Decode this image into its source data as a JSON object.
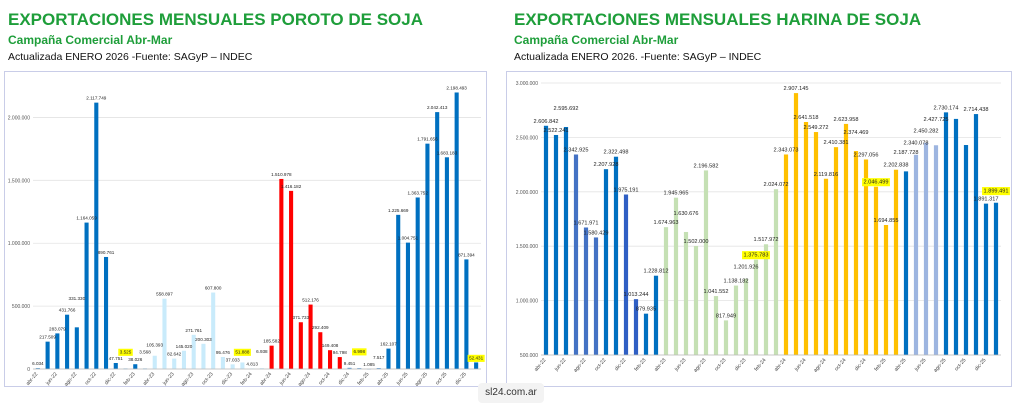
{
  "left": {
    "title": "EXPORTACIONES MENSUALES POROTO DE SOJA",
    "subtitle": "Campaña Comercial Abr-Mar",
    "updated": "Actualizada  ENERO  2026  -Fuente: SAGyP – INDEC"
  },
  "right": {
    "title": "EXPORTACIONES MENSUALES HARINA DE SOJA",
    "subtitle": "Campaña Comercial Abr-Mar",
    "updated": "Actualizada  ENERO 2026. -Fuente: SAGyP – INDEC"
  },
  "footer": "sl24.com.ar",
  "chart_data": [
    {
      "type": "bar",
      "ylim": [
        0,
        2250000
      ],
      "yticks": [
        0,
        500000,
        1000000,
        1500000,
        2000000
      ],
      "ytick_labels": [
        "0",
        "500.000",
        "1.000.000",
        "1.500.000",
        "2.000.000"
      ],
      "grid": true,
      "categories": [
        "abr-22",
        "may-22",
        "jun-22",
        "jul-22",
        "ago-22",
        "sep-22",
        "oct-22",
        "nov-22",
        "dic-22",
        "ene-23",
        "feb-23",
        "mar-23",
        "abr-23",
        "may-23",
        "jun-23",
        "jul-23",
        "ago-23",
        "sep-23",
        "oct-23",
        "nov-23",
        "dic-23",
        "ene-24",
        "feb-24",
        "mar-24",
        "abr-24",
        "may-24",
        "jun-24",
        "jul-24",
        "ago-24",
        "sep-24",
        "oct-24",
        "nov-24",
        "dic-24",
        "ene-25",
        "feb-25",
        "mar-25",
        "abr-25",
        "may-25",
        "jun-25",
        "jul-25",
        "ago-25",
        "sep-25",
        "oct-25",
        "nov-25",
        "dic-25",
        "ene-26"
      ],
      "values": [
        6034,
        217509,
        283079,
        431766,
        331330,
        1164059,
        2117749,
        890761,
        47751,
        3525,
        38026,
        3568,
        105393,
        558897,
        82642,
        145020,
        271761,
        200303,
        607800,
        95476,
        37033,
        51888,
        4813,
        6938,
        185582,
        1510978,
        1416182,
        371733,
        512176,
        292409,
        149408,
        94798,
        9451,
        6998,
        1085,
        7517,
        162107,
        1225669,
        1004751,
        1363752,
        1791656,
        2042413,
        1683183,
        2198493,
        871394,
        52431
      ],
      "color_groups": [
        {
          "from": 0,
          "to": 11,
          "color": "#0070c0"
        },
        {
          "from": 12,
          "to": 23,
          "color": "#c9ebfb"
        },
        {
          "from": 24,
          "to": 31,
          "color": "#ff0000"
        },
        {
          "from": 32,
          "to": 35,
          "color": "#5b9bd5"
        },
        {
          "from": 36,
          "to": 45,
          "color": "#0070c0"
        }
      ],
      "highlighted": [
        "ene-23",
        "ene-24",
        "ene-25",
        "ene-26"
      ],
      "unlabeled": [],
      "highlight_color": "#ffff00"
    },
    {
      "type": "bar",
      "ylim": [
        500000,
        3000000
      ],
      "yticks": [
        500000,
        1000000,
        1500000,
        2000000,
        2500000,
        3000000
      ],
      "ytick_labels": [
        "500.000",
        "1.000.000",
        "1.500.000",
        "2.000.000",
        "2.500.000",
        "3.000.000"
      ],
      "grid": true,
      "categories": [
        "abr-22",
        "may-22",
        "jun-22",
        "jul-22",
        "ago-22",
        "sep-22",
        "oct-22",
        "nov-22",
        "dic-22",
        "ene-23",
        "feb-23",
        "mar-23",
        "abr-23",
        "may-23",
        "jun-23",
        "jul-23",
        "ago-23",
        "sep-23",
        "oct-23",
        "nov-23",
        "dic-23",
        "ene-24",
        "feb-24",
        "mar-24",
        "abr-24",
        "may-24",
        "jun-24",
        "jul-24",
        "ago-24",
        "sep-24",
        "oct-24",
        "nov-24",
        "dic-24",
        "ene-25",
        "feb-25",
        "mar-25",
        "abr-25",
        "may-25",
        "jun-25",
        "jul-25",
        "ago-25",
        "sep-25",
        "oct-25",
        "nov-25",
        "dic-25",
        "ene-26"
      ],
      "values": [
        2606842,
        2522241,
        2595692,
        2342925,
        1671971,
        1580429,
        2207928,
        2322498,
        1975191,
        1013244,
        879935,
        1228812,
        1674963,
        1945965,
        1630676,
        1502000,
        2196582,
        1041552,
        817949,
        1138182,
        1201926,
        1375783,
        1517972,
        2024072,
        2343073,
        2907145,
        2641518,
        2549272,
        2119816,
        2410381,
        2623958,
        2374469,
        2297056,
        2046499,
        1694855,
        2202838,
        2187728,
        2340078,
        2450282,
        2427725,
        2730174,
        2670000,
        2430000,
        2714438,
        1891317,
        1899491
      ],
      "color_groups": [
        {
          "from": 0,
          "to": 2,
          "color": "#0070c0"
        },
        {
          "from": 3,
          "to": 5,
          "color": "#4472c4"
        },
        {
          "from": 6,
          "to": 7,
          "color": "#0070c0"
        },
        {
          "from": 8,
          "to": 9,
          "color": "#2f5fc4"
        },
        {
          "from": 10,
          "to": 11,
          "color": "#0070c0"
        },
        {
          "from": 12,
          "to": 23,
          "color": "#c5e0b4"
        },
        {
          "from": 24,
          "to": 35,
          "color": "#ffc000"
        },
        {
          "from": 36,
          "to": 36,
          "color": "#0070c0"
        },
        {
          "from": 37,
          "to": 39,
          "color": "#9db5e0"
        },
        {
          "from": 40,
          "to": 45,
          "color": "#0070c0"
        }
      ],
      "highlighted": [
        "ene-24",
        "ene-25",
        "ene-26"
      ],
      "unlabeled": [
        "sep-25",
        "oct-25"
      ],
      "highlight_color": "#ffff00"
    }
  ]
}
